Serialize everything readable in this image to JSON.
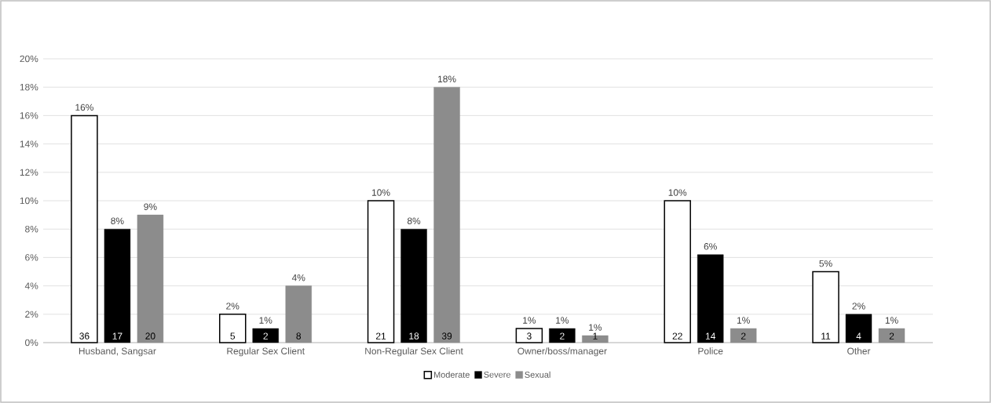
{
  "chart_data": {
    "type": "bar",
    "categories": [
      "Husband, Sangsar",
      "Regular Sex Client",
      "Non-Regular Sex Client",
      "Owner/boss/manager",
      "Police",
      "Other"
    ],
    "series": [
      {
        "name": "Moderate",
        "color": "#ffffff",
        "values": [
          16,
          2,
          10,
          1,
          10,
          5
        ],
        "value_labels": [
          "16%",
          "2%",
          "10%",
          "1%",
          "10%",
          "5%"
        ]
      },
      {
        "name": "Severe",
        "color": "#000000",
        "values": [
          8,
          1,
          8,
          1,
          6.2,
          2
        ],
        "value_labels": [
          "8%",
          "1%",
          "8%",
          "1%",
          "6%",
          "2%"
        ]
      },
      {
        "name": "Sexual",
        "color": "#8c8c8c",
        "values": [
          9,
          4,
          18,
          0.5,
          1,
          1
        ],
        "value_labels": [
          "9%",
          "4%",
          "18%",
          "1%",
          "1%",
          "1%"
        ]
      }
    ],
    "ylim": [
      0,
      20
    ],
    "yticks": [
      {
        "value": 0,
        "label": "0%"
      },
      {
        "value": 2,
        "label": "2%"
      },
      {
        "value": 4,
        "label": "4%"
      },
      {
        "value": 6,
        "label": "6%"
      },
      {
        "value": 8,
        "label": "8%"
      },
      {
        "value": 10,
        "label": "10%"
      },
      {
        "value": 12,
        "label": "12%"
      },
      {
        "value": 14,
        "label": "14%"
      },
      {
        "value": 16,
        "label": "16%"
      },
      {
        "value": 18,
        "label": "18%"
      },
      {
        "value": 20,
        "label": "20%"
      }
    ],
    "grid": "y",
    "legend": "bottom",
    "annotations": [
      "36",
      "17",
      "20",
      "5",
      "2",
      "8",
      "21",
      "18",
      "39",
      "3",
      "2",
      "1",
      "22",
      "14",
      "2",
      "11",
      "4",
      "2"
    ]
  }
}
